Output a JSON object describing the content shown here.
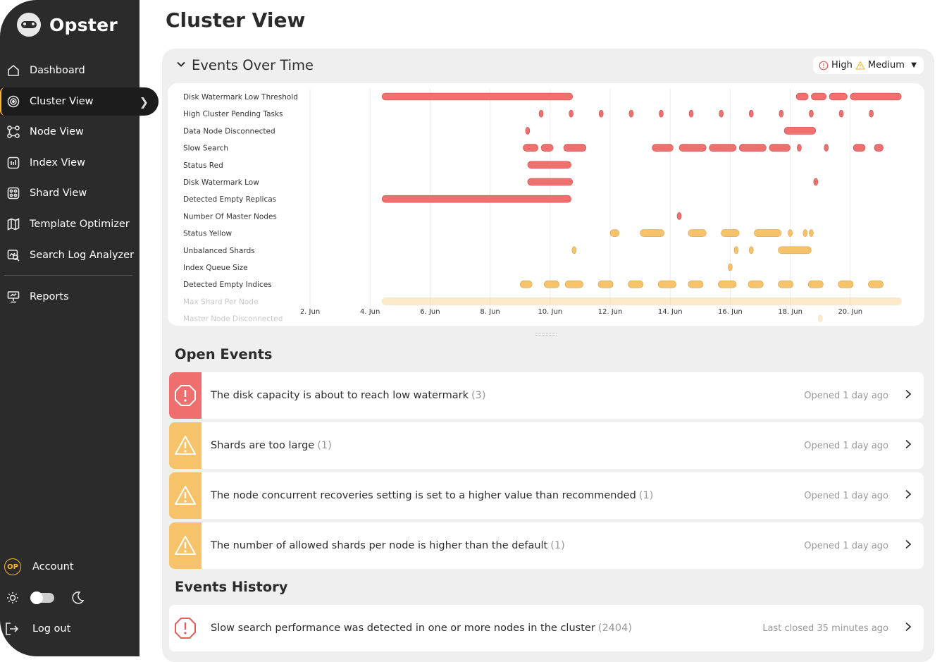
{
  "app": {
    "name": "Opster"
  },
  "sidebar": {
    "items": [
      {
        "label": "Dashboard",
        "icon": "home-icon"
      },
      {
        "label": "Cluster View",
        "icon": "target-icon",
        "active": true
      },
      {
        "label": "Node View",
        "icon": "nodes-icon"
      },
      {
        "label": "Index View",
        "icon": "index-icon"
      },
      {
        "label": "Shard View",
        "icon": "shard-icon"
      },
      {
        "label": "Template Optimizer",
        "icon": "map-icon"
      },
      {
        "label": "Search Log Analyzer",
        "icon": "search-log-icon"
      },
      {
        "label": "Reports",
        "icon": "reports-icon"
      }
    ],
    "account": {
      "badge": "OP",
      "label": "Account"
    },
    "logout_label": "Log out"
  },
  "page": {
    "title": "Cluster View"
  },
  "events_over_time": {
    "title": "Events Over Time",
    "filter": {
      "high_label": "High",
      "medium_label": "Medium"
    }
  },
  "chart_data": {
    "type": "scatter",
    "xlabel": "",
    "ylabel": "",
    "x_ticks": [
      "2. Jun",
      "4. Jun",
      "6. Jun",
      "8. Jun",
      "10. Jun",
      "12. Jun",
      "14. Jun",
      "16. Jun",
      "18. Jun",
      "20. Jun"
    ],
    "grid": true,
    "colors": {
      "high": "#f07070",
      "medium": "#f6c36a"
    },
    "series": [
      {
        "name": "Disk Watermark Low Threshold",
        "severity": "high",
        "ranges": [
          [
            4.4,
            10.75
          ],
          [
            18.2,
            18.6
          ],
          [
            18.7,
            19.2
          ],
          [
            19.3,
            19.9
          ],
          [
            20.0,
            21.7
          ]
        ]
      },
      {
        "name": "High Cluster Pending Tasks",
        "severity": "high",
        "points": [
          9.7,
          10.7,
          11.7,
          12.7,
          13.7,
          14.7,
          15.7,
          16.7,
          17.7,
          18.7,
          19.7,
          20.7
        ]
      },
      {
        "name": "Data Node Disconnected",
        "severity": "high",
        "points": [
          9.25
        ],
        "ranges": [
          [
            17.8,
            18.85
          ]
        ]
      },
      {
        "name": "Slow Search",
        "severity": "high",
        "ranges": [
          [
            9.1,
            9.6
          ],
          [
            9.7,
            10.1
          ],
          [
            10.45,
            11.2
          ],
          [
            13.4,
            14.1
          ],
          [
            14.3,
            15.2
          ],
          [
            15.3,
            16.2
          ],
          [
            16.3,
            17.2
          ],
          [
            17.3,
            18.0
          ],
          [
            20.1,
            20.5
          ],
          [
            20.8,
            21.1
          ]
        ],
        "points": [
          18.3,
          19.2
        ]
      },
      {
        "name": "Status Red",
        "severity": "high",
        "ranges": [
          [
            9.25,
            10.7
          ]
        ]
      },
      {
        "name": "Disk Watermark Low",
        "severity": "high",
        "ranges": [
          [
            9.25,
            10.75
          ]
        ],
        "points": [
          18.85
        ]
      },
      {
        "name": "Detected Empty Replicas",
        "severity": "high",
        "ranges": [
          [
            4.4,
            10.7
          ]
        ]
      },
      {
        "name": "Number Of Master Nodes",
        "severity": "high",
        "points": [
          14.3
        ]
      },
      {
        "name": "Status Yellow",
        "severity": "medium",
        "ranges": [
          [
            12.0,
            12.3
          ],
          [
            13.0,
            13.8
          ],
          [
            14.6,
            15.2
          ],
          [
            15.7,
            16.3
          ],
          [
            16.8,
            17.7
          ]
        ],
        "points": [
          18.0,
          18.5,
          18.7
        ]
      },
      {
        "name": "Unbalanced Shards",
        "severity": "medium",
        "points": [
          10.8,
          16.2,
          16.7
        ],
        "ranges": [
          [
            17.6,
            18.7
          ]
        ]
      },
      {
        "name": "Index Queue Size",
        "severity": "medium",
        "points": [
          16.0
        ]
      },
      {
        "name": "Detected Empty Indices",
        "severity": "medium",
        "ranges": [
          [
            9.0,
            9.4
          ],
          [
            9.8,
            10.3
          ],
          [
            10.5,
            11.1
          ],
          [
            11.6,
            12.1
          ],
          [
            12.6,
            13.1
          ],
          [
            13.6,
            14.2
          ],
          [
            14.6,
            15.1
          ],
          [
            15.6,
            16.2
          ],
          [
            16.6,
            17.1
          ],
          [
            17.6,
            18.1
          ],
          [
            18.6,
            19.1
          ],
          [
            19.6,
            20.1
          ],
          [
            20.6,
            21.1
          ]
        ]
      },
      {
        "name": "Max Shard Per Node",
        "severity": "medium",
        "ranges": [
          [
            4.4,
            21.7
          ]
        ]
      },
      {
        "name": "Master Node Disconnected",
        "severity": "medium",
        "points": [
          19.0
        ]
      }
    ]
  },
  "open_events": {
    "title": "Open Events",
    "items": [
      {
        "severity": "high",
        "text": "The disk capacity is about to reach low watermark",
        "count": "(3)",
        "meta": "Opened 1 day ago"
      },
      {
        "severity": "medium",
        "text": "Shards are too large",
        "count": "(1)",
        "meta": "Opened 1 day ago"
      },
      {
        "severity": "medium",
        "text": "The node concurrent recoveries setting is set to a higher value than recommended",
        "count": "(1)",
        "meta": "Opened 1 day ago"
      },
      {
        "severity": "medium",
        "text": "The number of allowed shards per node is higher than the default",
        "count": "(1)",
        "meta": "Opened 1 day ago"
      }
    ]
  },
  "events_history": {
    "title": "Events History",
    "items": [
      {
        "severity": "high",
        "text": "Slow search performance was detected in one or more nodes in the cluster",
        "count": "(2404)",
        "meta": "Last closed 35 minutes ago"
      }
    ]
  }
}
